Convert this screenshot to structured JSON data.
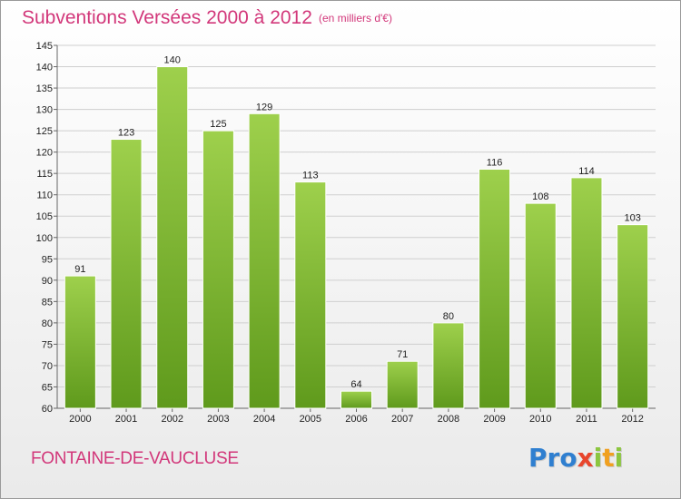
{
  "header": {
    "title": "Subventions Versées 2000 à 2012",
    "subtitle": "(en milliers d'€)"
  },
  "footer": {
    "commune": "FONTAINE-DE-VAUCLUSE",
    "logo": "Proxiti",
    "logo_letters": [
      {
        "char": "P",
        "color": "#2f7fd0"
      },
      {
        "char": "r",
        "color": "#2f7fd0"
      },
      {
        "char": "o",
        "color": "#2f7fd0"
      },
      {
        "char": "x",
        "color": "#e8452c"
      },
      {
        "char": "i",
        "color": "#8cc63f"
      },
      {
        "char": "t",
        "color": "#f0a020"
      },
      {
        "char": "i",
        "color": "#8cc63f"
      }
    ]
  },
  "chart_data": {
    "type": "bar",
    "title": "Subventions Versées 2000 à 2012",
    "subtitle": "(en milliers d'€)",
    "categories": [
      "2000",
      "2001",
      "2002",
      "2003",
      "2004",
      "2005",
      "2006",
      "2007",
      "2008",
      "2009",
      "2010",
      "2011",
      "2012"
    ],
    "values": [
      91,
      123,
      140,
      125,
      129,
      113,
      64,
      71,
      80,
      116,
      108,
      114,
      103
    ],
    "ylim": [
      60,
      145
    ],
    "ytick_step": 5,
    "grid": true,
    "bar_color_top": "#9ed04c",
    "bar_color_bottom": "#5f9a1c"
  }
}
